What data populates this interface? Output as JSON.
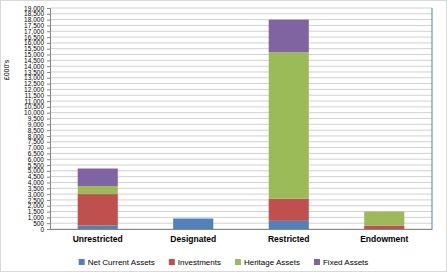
{
  "chart_data": {
    "type": "bar",
    "stacked": true,
    "grid": true,
    "legend": "bottom",
    "y_label": "£000's",
    "categories": [
      "Unrestricted",
      "Designated",
      "Restricted",
      "Endowment"
    ],
    "series": [
      {
        "name": "Net Current Assets",
        "color": "#4f81bd",
        "values": [
          300,
          900,
          700,
          0
        ]
      },
      {
        "name": "Investments",
        "color": "#c0504d",
        "values": [
          2700,
          0,
          1900,
          300
        ]
      },
      {
        "name": "Heritage Assets",
        "color": "#9bbb59",
        "values": [
          700,
          0,
          12600,
          1200
        ]
      },
      {
        "name": "Fixed Assets",
        "color": "#8064a2",
        "values": [
          1500,
          0,
          2800,
          0
        ]
      }
    ],
    "ylim": [
      0,
      19000
    ],
    "yticks": [
      0,
      500,
      {
        "value": 1000,
        "label": "1,000"
      },
      {
        "value": 1500,
        "label": "1,500"
      },
      {
        "value": 2000,
        "label": "2,000"
      },
      {
        "value": 2500,
        "label": "2,500"
      },
      {
        "value": 3000,
        "label": "3,000"
      },
      {
        "value": 3500,
        "label": "3,500"
      },
      {
        "value": 4000,
        "label": "4,000"
      },
      {
        "value": 4500,
        "label": "4,500"
      },
      {
        "value": 5000,
        "label": "5,000"
      },
      {
        "value": 5500,
        "label": "5,500"
      },
      {
        "value": 6000,
        "label": "6,000"
      },
      {
        "value": 6500,
        "label": "6,500"
      },
      {
        "value": 7000,
        "label": "7,000"
      },
      {
        "value": 7500,
        "label": "7,500"
      },
      {
        "value": 8000,
        "label": "8,000"
      },
      {
        "value": 8500,
        "label": "8,500"
      },
      {
        "value": 9000,
        "label": "9,000"
      },
      {
        "value": 9500,
        "label": "9,500"
      },
      {
        "value": 10000,
        "label": "10,000"
      },
      {
        "value": 10500,
        "label": "10,500"
      },
      {
        "value": 11000,
        "label": "11,000"
      },
      {
        "value": 11500,
        "label": "11,500"
      },
      {
        "value": 12000,
        "label": "12,000"
      },
      {
        "value": 12500,
        "label": "12,500"
      },
      {
        "value": 13000,
        "label": "13,000"
      },
      {
        "value": 13500,
        "label": "13,500"
      },
      {
        "value": 14000,
        "label": "14,000"
      },
      {
        "value": 14500,
        "label": "14,500"
      },
      {
        "value": 15000,
        "label": "15,000"
      },
      {
        "value": 15500,
        "label": "15,500"
      },
      {
        "value": 16000,
        "label": "16,000"
      },
      {
        "value": 16500,
        "label": "16,500"
      },
      {
        "value": 17000,
        "label": "17,000"
      },
      {
        "value": 17500,
        "label": "17,500"
      },
      {
        "value": 18000,
        "label": "18,000"
      },
      {
        "value": 18500,
        "label": "18,500"
      },
      {
        "value": 19000,
        "label": "19,000"
      }
    ]
  }
}
